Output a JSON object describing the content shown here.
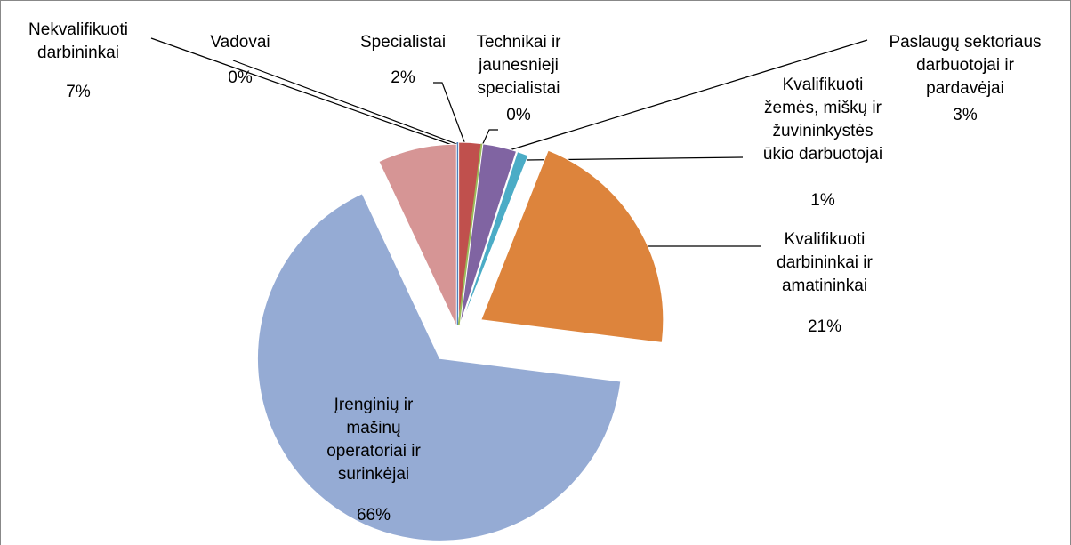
{
  "chart_data": {
    "type": "pie",
    "categories": [
      "Vadovai",
      "Specialistai",
      "Technikai ir jaunesnieji specialistai",
      "Paslaugų sektoriaus darbuotojai ir pardavėjai",
      "Kvalifikuoti žemės, miškų ir žuvininkystės ūkio darbuotojai",
      "Kvalifikuoti darbininkai ir amatininkai",
      "Įrenginių ir mašinų operatoriai ir surinkėjai",
      "Nekvalifikuoti darbininkai"
    ],
    "values": [
      0,
      2,
      0,
      3,
      1,
      21,
      66,
      7
    ],
    "value_labels": [
      "0%",
      "2%",
      "0%",
      "3%",
      "1%",
      "21%",
      "66%",
      "7%"
    ],
    "colors": [
      "#4f81bd",
      "#c0504d",
      "#9bbb59",
      "#8064a2",
      "#4bacc6",
      "#dd843c",
      "#95abd4",
      "#d69595"
    ]
  }
}
